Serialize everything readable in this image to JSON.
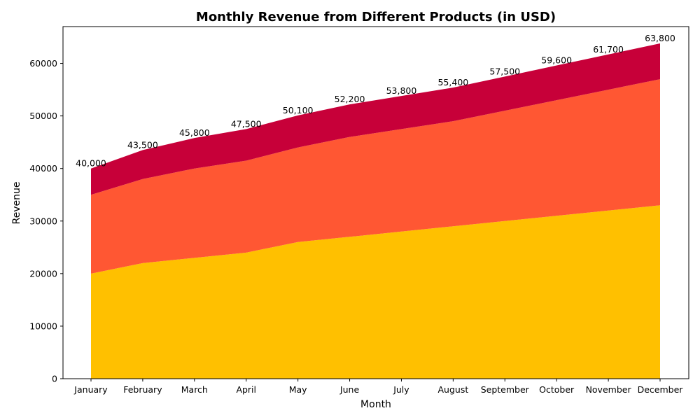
{
  "chart_data": {
    "type": "area",
    "stacked": true,
    "title": "Monthly Revenue from Different Products (in USD)",
    "xlabel": "Month",
    "ylabel": "Revenue",
    "categories": [
      "January",
      "February",
      "March",
      "April",
      "May",
      "June",
      "July",
      "August",
      "September",
      "October",
      "November",
      "December"
    ],
    "ylim": [
      0,
      67000
    ],
    "yticks": [
      0,
      10000,
      20000,
      30000,
      40000,
      50000,
      60000
    ],
    "grid": false,
    "series": [
      {
        "values": [
          20000,
          22000,
          23000,
          24000,
          26000,
          27000,
          28000,
          29000,
          30000,
          31000,
          32000,
          33000
        ],
        "color": "#ffc000"
      },
      {
        "values": [
          15000,
          16000,
          17000,
          17500,
          18000,
          19000,
          19500,
          20000,
          21000,
          22000,
          23000,
          24000
        ],
        "color": "#ff5733"
      },
      {
        "values": [
          5000,
          5500,
          5800,
          6000,
          6100,
          6200,
          6300,
          6400,
          6500,
          6600,
          6700,
          6800
        ],
        "color": "#c70039"
      }
    ],
    "totals": [
      "40,000",
      "43,500",
      "45,800",
      "47,500",
      "50,100",
      "52,200",
      "53,800",
      "55,400",
      "57,500",
      "59,600",
      "61,700",
      "63,800"
    ]
  }
}
